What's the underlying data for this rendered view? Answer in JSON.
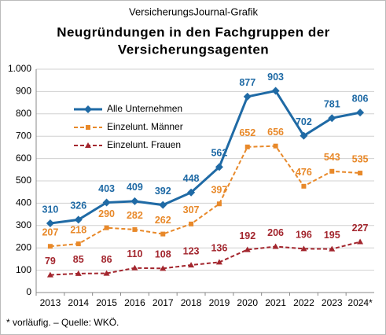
{
  "chart_data": {
    "type": "line",
    "supertitle": "VersicherungsJournal-Grafik",
    "title": [
      "Neugründungen in den Fachgruppen der",
      "Versicherungsagenten"
    ],
    "footnote": "* vorläufig.  – Quelle: WKÖ.",
    "categories": [
      "2013",
      "2014",
      "2015",
      "2016",
      "2017",
      "2018",
      "2019",
      "2020",
      "2021",
      "2022",
      "2023",
      "2024*"
    ],
    "series": [
      {
        "name": "Alle Unternehmen",
        "color": "#1f6aa5",
        "marker": "diamond",
        "dashed": false,
        "values": [
          310,
          326,
          403,
          409,
          392,
          448,
          562,
          877,
          903,
          702,
          781,
          806
        ]
      },
      {
        "name": "Einzelunt. Männer",
        "color": "#e8892a",
        "marker": "square",
        "dashed": true,
        "values": [
          207,
          218,
          290,
          282,
          262,
          307,
          397,
          652,
          656,
          476,
          543,
          535
        ]
      },
      {
        "name": "Einzelunt. Frauen",
        "color": "#a3262e",
        "marker": "triangle",
        "dashed": true,
        "values": [
          79,
          85,
          86,
          110,
          108,
          123,
          136,
          192,
          206,
          196,
          195,
          227
        ]
      }
    ],
    "ylim": [
      0,
      1000
    ],
    "yticks": [
      0,
      100,
      200,
      300,
      400,
      500,
      600,
      700,
      800,
      900,
      {
        "value": 1000,
        "label": "1.000"
      }
    ],
    "grid": true
  }
}
